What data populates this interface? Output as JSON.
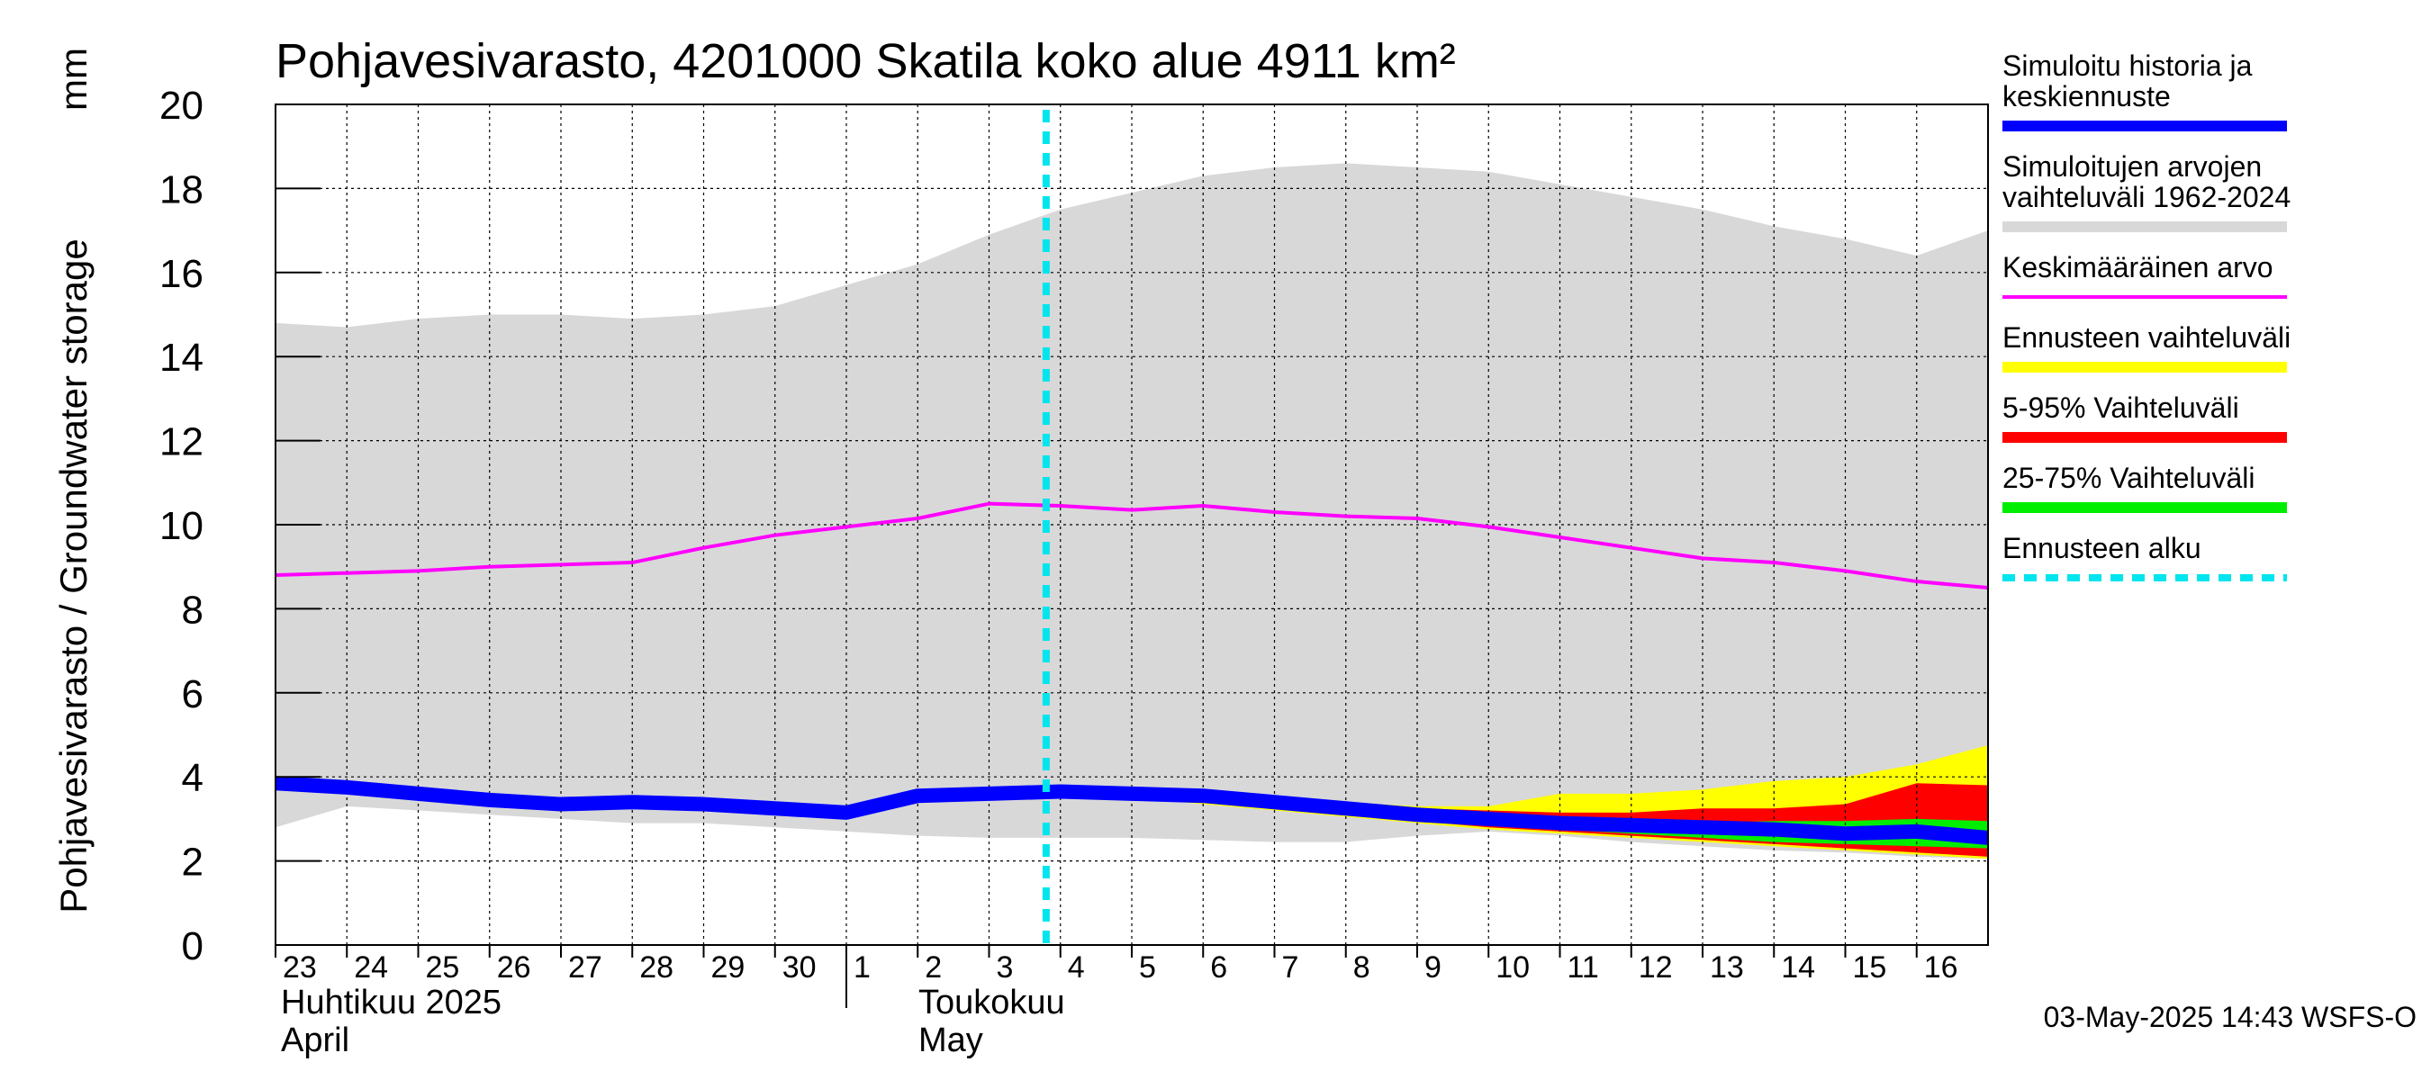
{
  "chart_data": {
    "type": "area",
    "title": "Pohjavesivarasto, 4201000 Skatila koko alue 4911 km²",
    "ylabel": "Pohjavesivarasto / Groundwater storage",
    "yunit": "mm",
    "ylim": [
      0,
      20
    ],
    "yticks": [
      "0",
      "2",
      "4",
      "6",
      "8",
      "10",
      "12",
      "14",
      "16",
      "18",
      "20"
    ],
    "grid": true,
    "legend_position": "right",
    "x_day_labels": [
      "23",
      "24",
      "25",
      "26",
      "27",
      "28",
      "29",
      "30",
      "1",
      "2",
      "3",
      "4",
      "5",
      "6",
      "7",
      "8",
      "9",
      "10",
      "11",
      "12",
      "13",
      "14",
      "15",
      "16"
    ],
    "month_labels": [
      {
        "fi": "Huhtikuu  2025",
        "en": "April"
      },
      {
        "fi": "Toukokuu",
        "en": "May"
      }
    ],
    "forecast_start_day": 10.8,
    "series": [
      {
        "name": "Simuloitujen arvojen vaihteluväli 1962-2024",
        "kind": "band",
        "color": "#d8d8d8",
        "x": [
          0,
          1,
          2,
          3,
          4,
          5,
          6,
          7,
          8,
          9,
          10,
          11,
          12,
          13,
          14,
          15,
          16,
          17,
          18,
          19,
          20,
          21,
          22,
          23,
          24
        ],
        "upper": [
          14.8,
          14.7,
          14.9,
          15.0,
          15.0,
          14.9,
          15.0,
          15.2,
          15.7,
          16.2,
          16.9,
          17.5,
          17.9,
          18.3,
          18.5,
          18.6,
          18.5,
          18.4,
          18.1,
          17.8,
          17.5,
          17.1,
          16.8,
          16.4,
          17.0
        ],
        "lower": [
          2.8,
          3.3,
          3.2,
          3.1,
          3.0,
          2.9,
          2.9,
          2.8,
          2.7,
          2.6,
          2.55,
          2.55,
          2.55,
          2.5,
          2.45,
          2.45,
          2.6,
          2.7,
          2.6,
          2.45,
          2.35,
          2.25,
          2.2,
          2.1,
          2.05
        ]
      },
      {
        "name": "Ennusteen vaihteluväli",
        "kind": "band",
        "color": "#ffff00",
        "x": [
          11,
          12,
          13,
          14,
          15,
          16,
          17,
          18,
          19,
          20,
          21,
          22,
          23,
          24
        ],
        "upper": [
          3.65,
          3.75,
          3.65,
          3.5,
          3.4,
          3.3,
          3.3,
          3.6,
          3.6,
          3.7,
          3.9,
          4.0,
          4.3,
          4.75
        ],
        "lower": [
          3.6,
          3.5,
          3.35,
          3.2,
          3.05,
          2.9,
          2.75,
          2.65,
          2.55,
          2.45,
          2.35,
          2.25,
          2.15,
          2.05
        ]
      },
      {
        "name": "5-95% Vaihteluväli",
        "kind": "band",
        "color": "#ff0000",
        "x": [
          11,
          12,
          13,
          14,
          15,
          16,
          17,
          18,
          19,
          20,
          21,
          22,
          23,
          24
        ],
        "upper": [
          3.65,
          3.7,
          3.6,
          3.45,
          3.35,
          3.25,
          3.2,
          3.15,
          3.15,
          3.25,
          3.25,
          3.35,
          3.85,
          3.8
        ],
        "lower": [
          3.6,
          3.55,
          3.4,
          3.25,
          3.1,
          2.95,
          2.8,
          2.7,
          2.6,
          2.5,
          2.4,
          2.3,
          2.2,
          2.1
        ]
      },
      {
        "name": "25-75% Vaihteluväli",
        "kind": "band",
        "color": "#00ee00",
        "x": [
          11,
          12,
          13,
          14,
          15,
          16,
          17,
          18,
          19,
          20,
          21,
          22,
          23,
          24
        ],
        "upper": [
          3.62,
          3.65,
          3.55,
          3.4,
          3.28,
          3.15,
          3.05,
          2.95,
          2.9,
          2.9,
          2.95,
          2.95,
          3.0,
          2.95
        ],
        "lower": [
          3.6,
          3.58,
          3.45,
          3.3,
          3.15,
          3.0,
          2.85,
          2.75,
          2.65,
          2.55,
          2.45,
          2.4,
          2.35,
          2.3
        ]
      },
      {
        "name": "Keskimääräinen arvo",
        "kind": "line",
        "color": "#ff00ff",
        "x": [
          0,
          1,
          2,
          3,
          4,
          5,
          6,
          7,
          8,
          9,
          10,
          11,
          12,
          13,
          14,
          15,
          16,
          17,
          18,
          19,
          20,
          21,
          22,
          23,
          24
        ],
        "values": [
          8.8,
          8.85,
          8.9,
          9.0,
          9.05,
          9.1,
          9.45,
          9.75,
          9.95,
          10.15,
          10.5,
          10.45,
          10.35,
          10.45,
          10.3,
          10.2,
          10.15,
          9.95,
          9.7,
          9.45,
          9.2,
          9.1,
          8.9,
          8.65,
          8.5
        ]
      },
      {
        "name": "Simuloitu historia ja keskiennuste",
        "kind": "line",
        "color": "#0000ff",
        "x": [
          0,
          1,
          2,
          3,
          4,
          5,
          6,
          7,
          8,
          9,
          10,
          11,
          12,
          13,
          14,
          15,
          16,
          17,
          18,
          19,
          20,
          21,
          22,
          23,
          24
        ],
        "values": [
          3.85,
          3.75,
          3.6,
          3.45,
          3.35,
          3.4,
          3.35,
          3.25,
          3.15,
          3.55,
          3.6,
          3.65,
          3.6,
          3.55,
          3.4,
          3.25,
          3.1,
          3.0,
          2.9,
          2.85,
          2.8,
          2.75,
          2.65,
          2.7,
          2.55
        ]
      }
    ]
  },
  "legend": [
    {
      "label": "Simuloitu historia ja keskiennuste",
      "color": "#0000ff",
      "style": "thick"
    },
    {
      "label": "Simuloitujen arvojen vaihteluväli 1962-2024",
      "color": "#d8d8d8",
      "style": "thick"
    },
    {
      "label": "Keskimääräinen arvo",
      "color": "#ff00ff",
      "style": "thin"
    },
    {
      "label": "Ennusteen vaihteluväli",
      "color": "#ffff00",
      "style": "thick"
    },
    {
      "label": "5-95% Vaihteluväli",
      "color": "#ff0000",
      "style": "thick"
    },
    {
      "label": "25-75% Vaihteluväli",
      "color": "#00ee00",
      "style": "thick"
    },
    {
      "label": "Ennusteen alku",
      "color": "#00e5ee",
      "style": "dashed"
    }
  ],
  "timestamp": "03-May-2025 14:43 WSFS-O"
}
